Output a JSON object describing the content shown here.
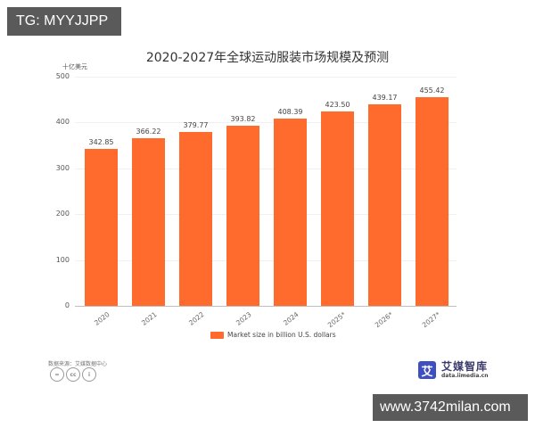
{
  "overlay": {
    "top_left_badge": "TG: MYYJJPP",
    "bottom_right_badge": "www.3742milan.com"
  },
  "chart": {
    "title": "2020-2027年全球运动服装市场规模及预测",
    "y_unit": "十亿美元",
    "legend_label": "Market size in billion U.S. dollars",
    "source": "数据来源：艾媒数据中心",
    "bar_color": "#ff6b2c"
  },
  "license_icons": [
    "=",
    "cc",
    "i"
  ],
  "logo": {
    "mark": "艾",
    "name": "艾媒智库",
    "url": "data.iimedia.cn",
    "color": "#3d4fc1"
  },
  "chart_data": {
    "type": "bar",
    "title": "2020-2027年全球运动服装市场规模及预测",
    "xlabel": "",
    "ylabel": "十亿美元",
    "categories": [
      "2020",
      "2021",
      "2022",
      "2023",
      "2024",
      "2025*",
      "2026*",
      "2027*"
    ],
    "series": [
      {
        "name": "Market size in billion U.S. dollars",
        "values": [
          342.85,
          366.22,
          379.77,
          393.82,
          408.39,
          423.5,
          439.17,
          455.42
        ],
        "labels": [
          "342.85",
          "366.22",
          "379.77",
          "393.82",
          "408.39",
          "423.50",
          "439.17",
          "455.42"
        ]
      }
    ],
    "ylim": [
      0,
      500
    ],
    "yticks": [
      "0",
      "100",
      "200",
      "300",
      "400",
      "500"
    ],
    "grid": true,
    "legend_position": "bottom"
  }
}
